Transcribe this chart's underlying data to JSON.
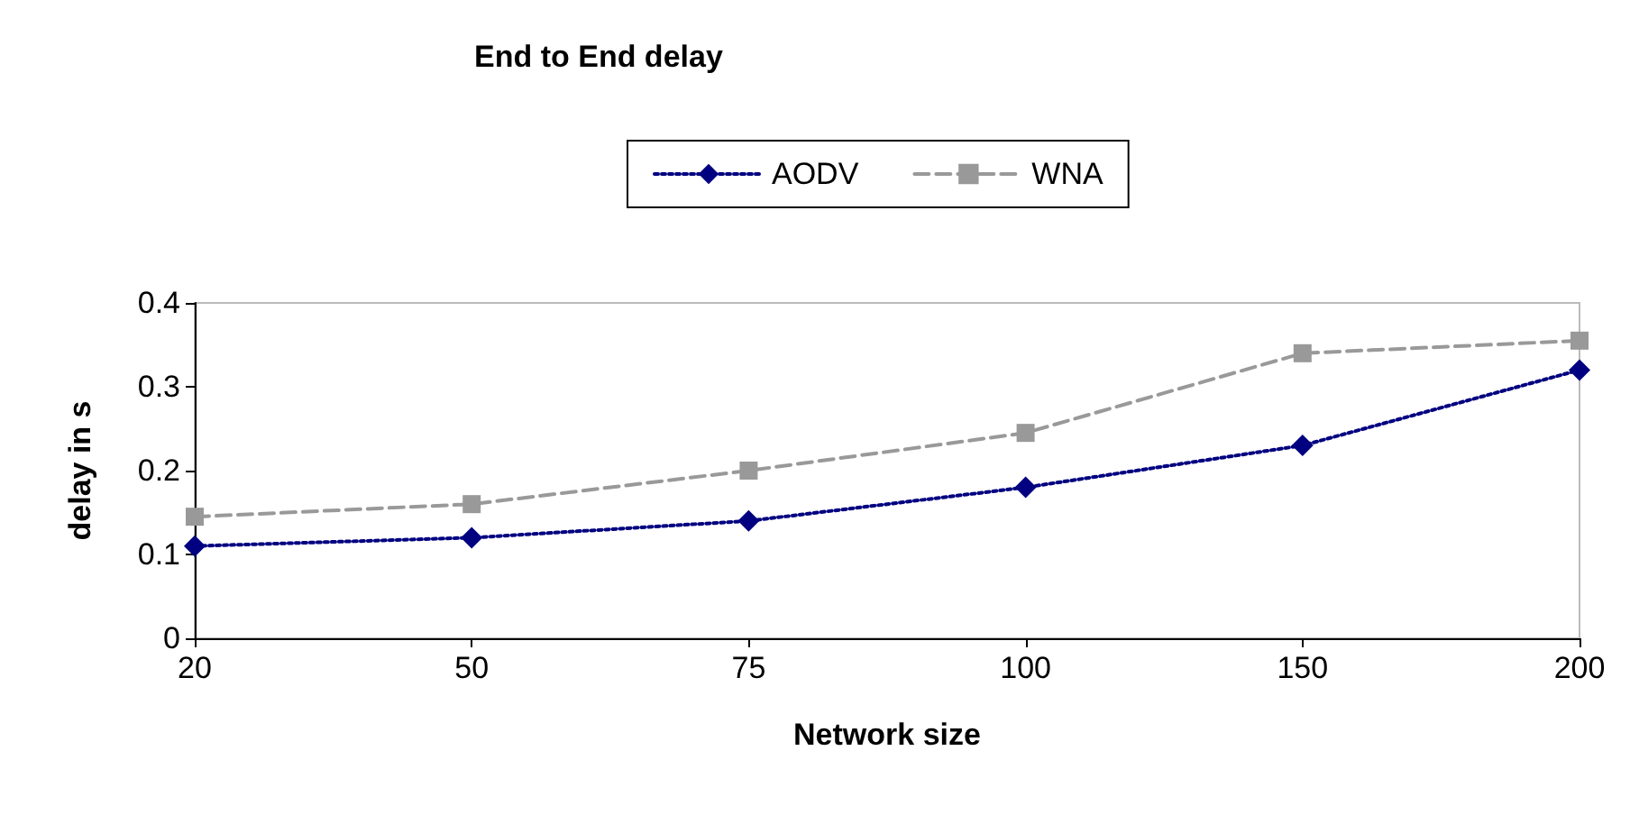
{
  "chart_data": {
    "type": "line",
    "title": "End to End delay",
    "xlabel": "Network size",
    "ylabel": "delay in s",
    "categories": [
      "20",
      "50",
      "75",
      "100",
      "150",
      "200"
    ],
    "series": [
      {
        "name": "AODV",
        "color": "#000080",
        "values": [
          0.11,
          0.12,
          0.14,
          0.18,
          0.23,
          0.32
        ],
        "marker": "diamond",
        "line_style": "dotted"
      },
      {
        "name": "WNA",
        "color": "#999999",
        "values": [
          0.145,
          0.16,
          0.2,
          0.245,
          0.34,
          0.355
        ],
        "marker": "square",
        "line_style": "dashed"
      }
    ],
    "ylim": [
      0,
      0.4
    ],
    "yticks": [
      0,
      0.1,
      0.2,
      0.3,
      0.4
    ],
    "grid": false,
    "legend": "top"
  }
}
